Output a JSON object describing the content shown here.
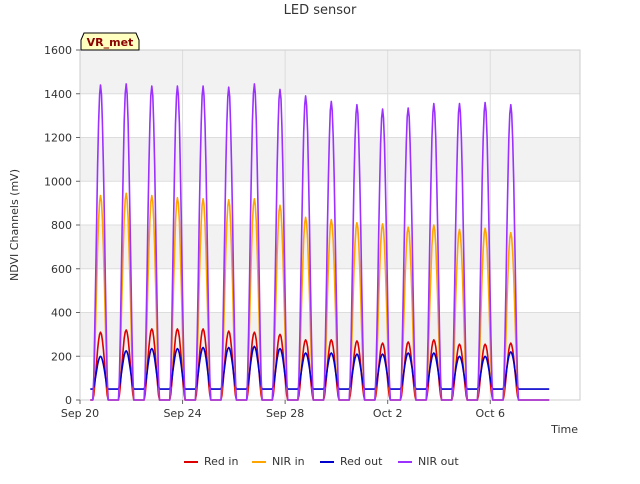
{
  "chart_data": {
    "type": "line",
    "title": "LED sensor",
    "xlabel": "Time",
    "ylabel": "NDVI Channels (mV)",
    "ylim": [
      0,
      1600
    ],
    "yticks": [
      0,
      200,
      400,
      600,
      800,
      1000,
      1200,
      1400,
      1600
    ],
    "xlim": [
      0,
      19.5
    ],
    "xticks": [
      {
        "day": 0,
        "label": "Sep 20"
      },
      {
        "day": 4,
        "label": "Sep 24"
      },
      {
        "day": 8,
        "label": "Sep 28"
      },
      {
        "day": 12,
        "label": "Oct 2"
      },
      {
        "day": 16,
        "label": "Oct 6"
      }
    ],
    "grid": true,
    "legend_position": "bottom",
    "annotation": "VR_met",
    "x_unit_note": "days",
    "peak_days": [
      0.8,
      1.8,
      2.8,
      3.8,
      4.8,
      5.8,
      6.8,
      7.8,
      8.8,
      9.8,
      10.8,
      11.8,
      12.8,
      13.8,
      14.8,
      15.8,
      16.8
    ],
    "series": [
      {
        "name": "Red in",
        "color": "#dd0000",
        "night": 0,
        "peaks": [
          310,
          320,
          325,
          325,
          325,
          315,
          310,
          300,
          275,
          275,
          270,
          260,
          265,
          275,
          255,
          255,
          260
        ]
      },
      {
        "name": "NIR in",
        "color": "#ffa500",
        "night": 0,
        "peaks": [
          935,
          945,
          935,
          925,
          920,
          915,
          920,
          890,
          835,
          825,
          810,
          805,
          790,
          800,
          780,
          785,
          765
        ]
      },
      {
        "name": "Red out",
        "color": "#0000cc",
        "night": 50,
        "peaks": [
          200,
          225,
          235,
          235,
          240,
          240,
          245,
          235,
          215,
          215,
          210,
          210,
          215,
          215,
          200,
          200,
          220
        ]
      },
      {
        "name": "NIR out",
        "color": "#9b30ff",
        "night": 0,
        "peaks": [
          1440,
          1445,
          1435,
          1435,
          1435,
          1430,
          1445,
          1420,
          1390,
          1365,
          1350,
          1330,
          1335,
          1355,
          1355,
          1360,
          1350
        ]
      }
    ]
  }
}
